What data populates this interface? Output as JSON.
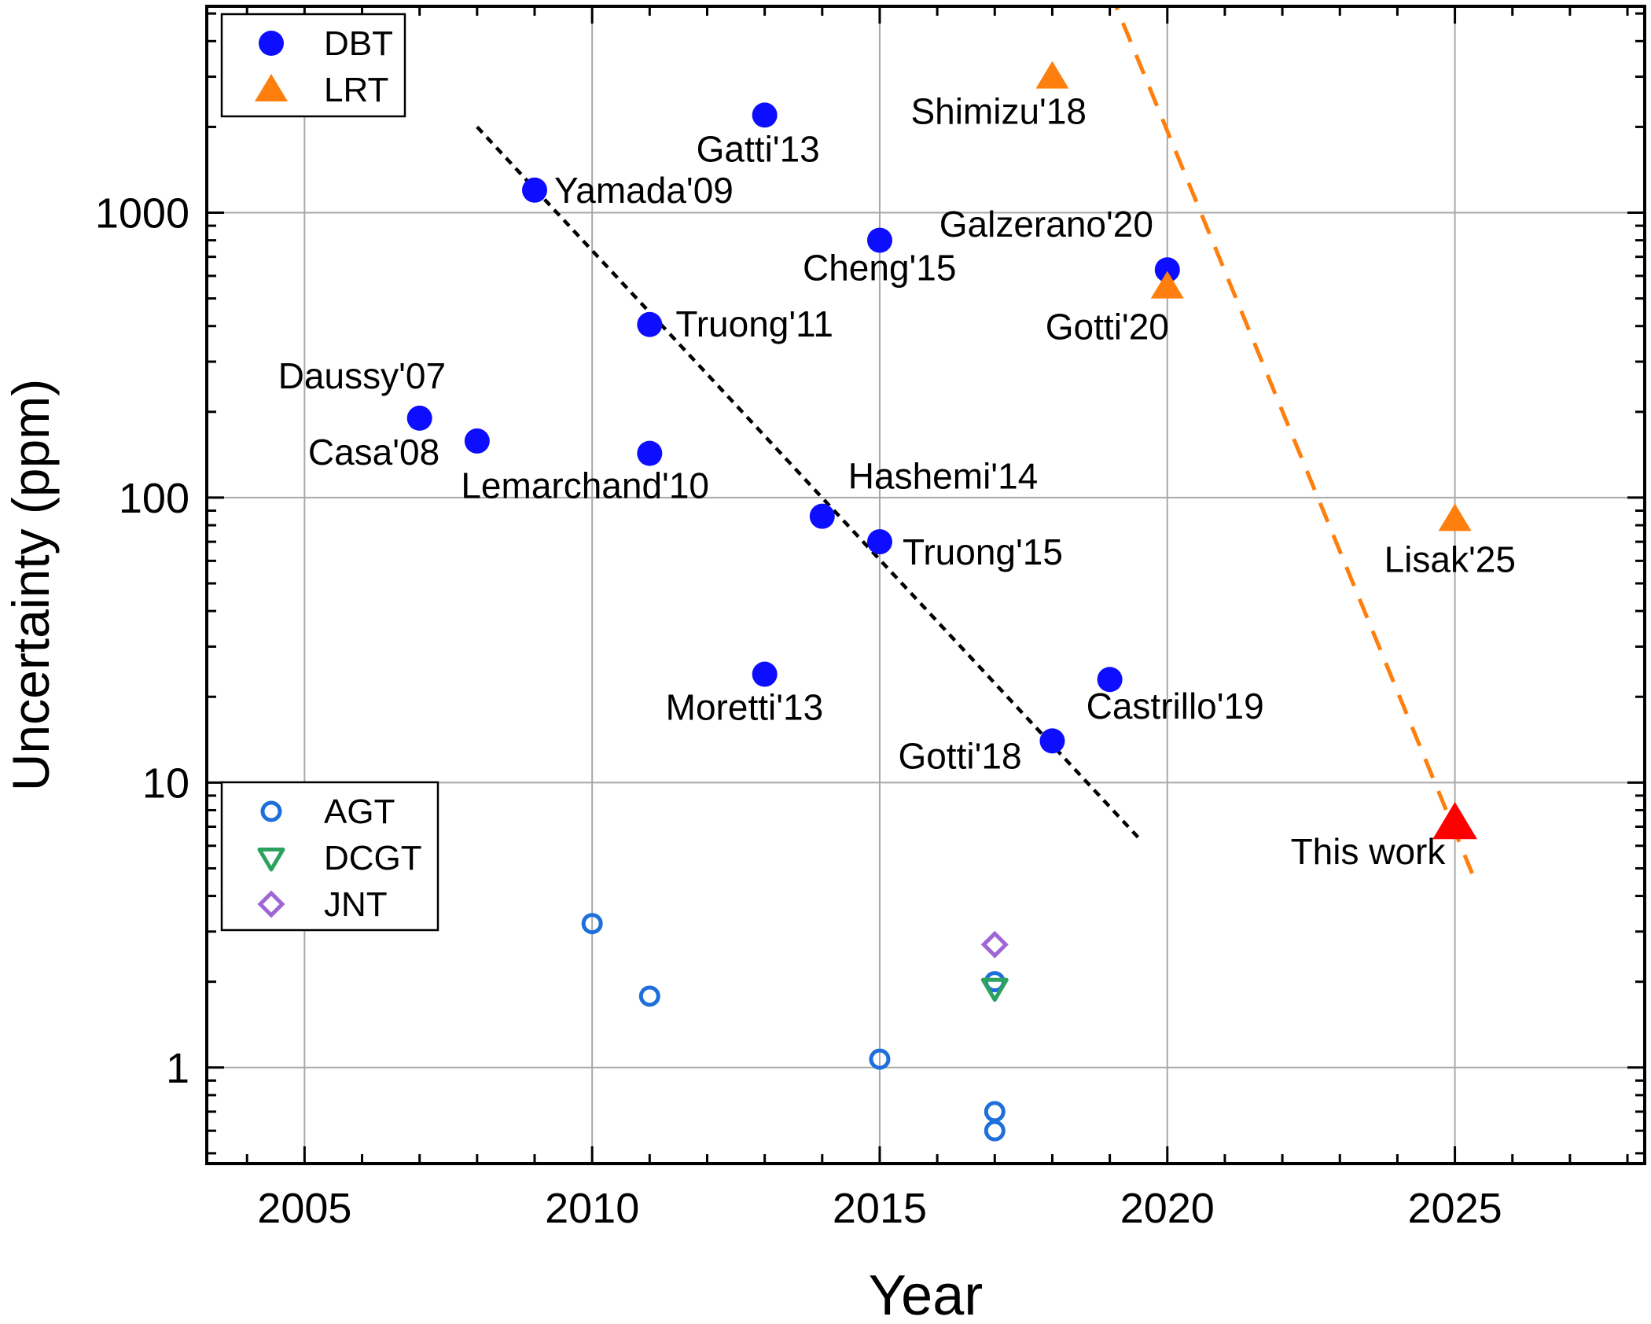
{
  "chart_data": {
    "type": "scatter",
    "xlabel": "Year",
    "ylabel": "Uncertainty (ppm)",
    "xlim": [
      2003.3,
      2028.3
    ],
    "ylim": [
      0.46,
      5300
    ],
    "yscale": "log",
    "grid": true,
    "x_ticks": [
      2005,
      2010,
      2015,
      2020,
      2025
    ],
    "x_tick_labels": [
      "2005",
      "2010",
      "2015",
      "2020",
      "2025"
    ],
    "y_ticks": [
      1,
      10,
      100,
      1000
    ],
    "y_tick_labels": [
      "1",
      "10",
      "100",
      "1000"
    ],
    "series": [
      {
        "name": "DBT",
        "marker": "circle-filled",
        "color": "#0d0dff",
        "points": [
          {
            "x": 2007,
            "y": 190,
            "label": "Daussy'07"
          },
          {
            "x": 2008,
            "y": 158,
            "label": "Casa'08"
          },
          {
            "x": 2009,
            "y": 1200,
            "label": "Yamada'09"
          },
          {
            "x": 2011,
            "y": 143,
            "label": "Lemarchand'10"
          },
          {
            "x": 2011,
            "y": 405,
            "label": "Truong'11"
          },
          {
            "x": 2013,
            "y": 2200,
            "label": "Gatti'13"
          },
          {
            "x": 2013,
            "y": 24,
            "label": "Moretti'13"
          },
          {
            "x": 2014,
            "y": 86,
            "label": "Hashemi'14"
          },
          {
            "x": 2015,
            "y": 800,
            "label": "Cheng'15"
          },
          {
            "x": 2015,
            "y": 70,
            "label": "Truong'15"
          },
          {
            "x": 2018,
            "y": 14,
            "label": "Gotti'18"
          },
          {
            "x": 2019,
            "y": 23,
            "label": "Castrillo'19"
          },
          {
            "x": 2020,
            "y": 630,
            "label": "Galzerano'20"
          }
        ]
      },
      {
        "name": "LRT",
        "marker": "triangle-up",
        "color": "#ff7f0e",
        "points": [
          {
            "x": 2018,
            "y": 3000,
            "label": "Shimizu'18"
          },
          {
            "x": 2020,
            "y": 550,
            "label": "Gotti'20"
          },
          {
            "x": 2025,
            "y": 84,
            "label": "Lisak'25"
          }
        ]
      },
      {
        "name": "AGT",
        "marker": "circle-open",
        "color": "#1e6fd9",
        "points": [
          {
            "x": 2010,
            "y": 3.2
          },
          {
            "x": 2011,
            "y": 1.78
          },
          {
            "x": 2015,
            "y": 1.07
          },
          {
            "x": 2017,
            "y": 2.0
          },
          {
            "x": 2017,
            "y": 0.7
          },
          {
            "x": 2017,
            "y": 0.6
          }
        ]
      },
      {
        "name": "DCGT",
        "marker": "triangle-down-open",
        "color": "#2ca25f",
        "points": [
          {
            "x": 2017,
            "y": 1.9
          }
        ]
      },
      {
        "name": "JNT",
        "marker": "diamond-open",
        "color": "#a066d6",
        "points": [
          {
            "x": 2017,
            "y": 2.7
          }
        ]
      },
      {
        "marker": "triangle-up",
        "color": "#ff0000",
        "points": [
          {
            "x": 2025,
            "y": 7.2,
            "label": "This work"
          }
        ]
      }
    ],
    "trend_lines": [
      {
        "style": "dotted",
        "color": "#000000",
        "x": [
          2008,
          2019.5
        ],
        "y": [
          2000,
          6.4
        ]
      },
      {
        "style": "dashed",
        "color": "#ff7f0e",
        "x": [
          2019,
          2025.3
        ],
        "y": [
          6000,
          4.8
        ]
      }
    ],
    "legends": [
      {
        "placement": "top-left",
        "entries": [
          "DBT",
          "LRT"
        ]
      },
      {
        "placement": "lower-left",
        "entries": [
          "AGT",
          "DCGT",
          "JNT"
        ]
      }
    ]
  }
}
